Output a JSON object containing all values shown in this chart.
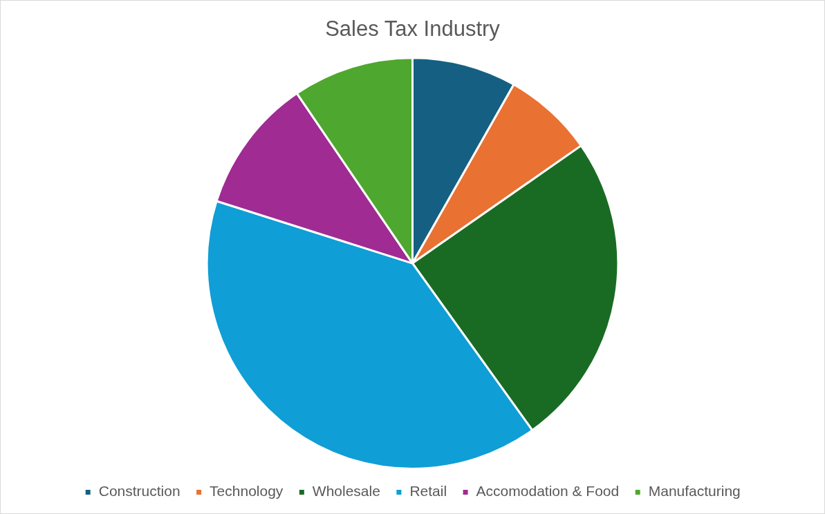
{
  "chart_data": {
    "type": "pie",
    "title": "Sales Tax Industry",
    "categories": [
      "Construction",
      "Technology",
      "Wholesale",
      "Retail",
      "Accomodation & Food",
      "Manufacturing"
    ],
    "values": [
      8.2,
      7.1,
      24.8,
      39.8,
      10.6,
      9.5
    ],
    "colors": [
      "#156082",
      "#e97132",
      "#196b24",
      "#0f9ed5",
      "#a02b93",
      "#4ea72e"
    ],
    "legend": "bottom"
  }
}
